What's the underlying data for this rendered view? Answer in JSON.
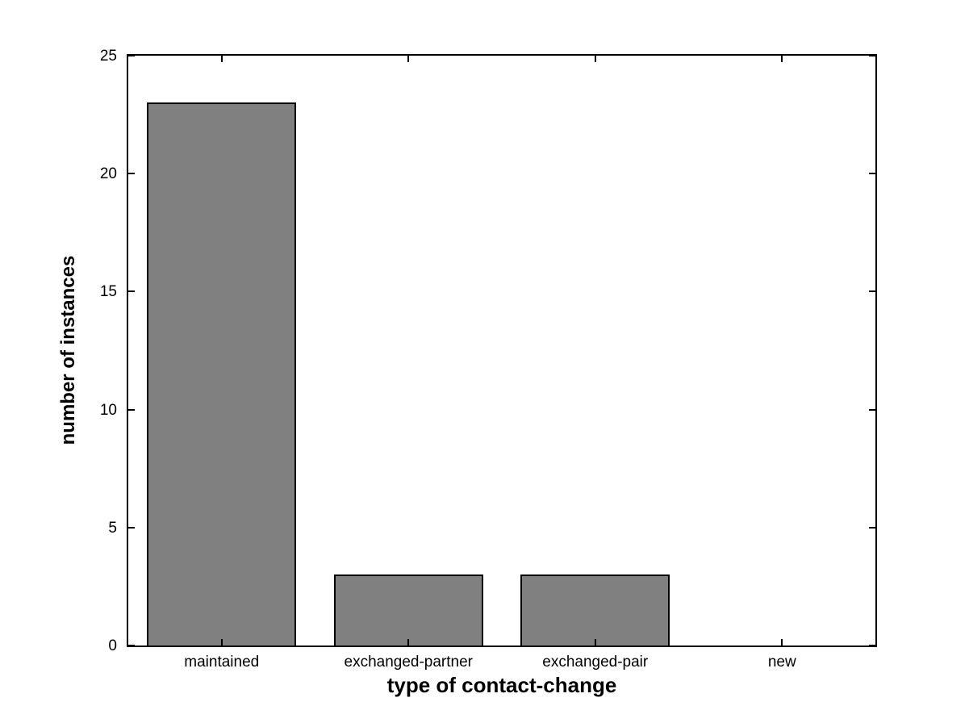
{
  "chart_data": {
    "type": "bar",
    "categories": [
      "maintained",
      "exchanged-partner",
      "exchanged-pair",
      "new"
    ],
    "values": [
      23,
      3,
      3,
      0
    ],
    "title": "",
    "xlabel": "type of contact-change",
    "ylabel": "number of instances",
    "ylim": [
      0,
      25
    ],
    "yticks": [
      0,
      5,
      10,
      15,
      20,
      25
    ],
    "ytick_labels": [
      "0",
      "5",
      "10",
      "15",
      "20",
      "25"
    ],
    "bar_color": "#808080",
    "bar_edge_color": "#000000",
    "axis_color": "#000000",
    "background_color": "#ffffff",
    "bar_width_fraction": 0.8,
    "grid": false,
    "legend": null,
    "tick_direction": "in",
    "box": true
  }
}
